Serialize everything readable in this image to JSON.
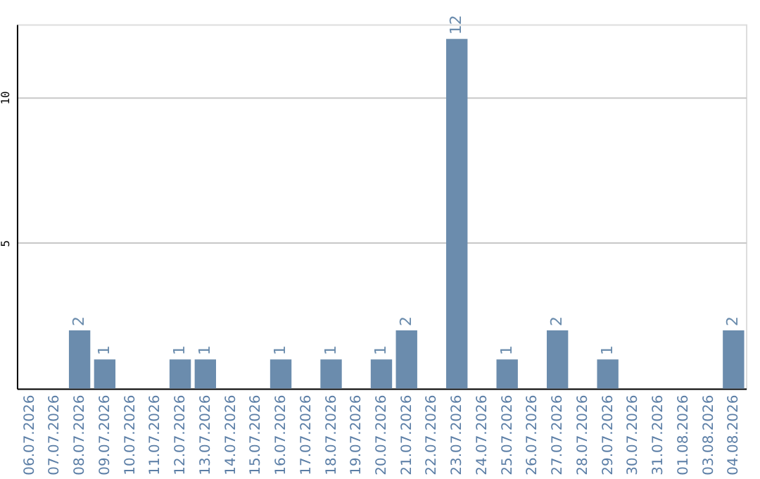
{
  "chart_data": {
    "type": "bar",
    "categories": [
      "06.07.2026",
      "07.07.2026",
      "08.07.2026",
      "09.07.2026",
      "10.07.2026",
      "11.07.2026",
      "12.07.2026",
      "13.07.2026",
      "14.07.2026",
      "15.07.2026",
      "16.07.2026",
      "17.07.2026",
      "18.07.2026",
      "19.07.2026",
      "20.07.2026",
      "21.07.2026",
      "22.07.2026",
      "23.07.2026",
      "24.07.2026",
      "25.07.2026",
      "26.07.2026",
      "27.07.2026",
      "28.07.2026",
      "29.07.2026",
      "30.07.2026",
      "31.07.2026",
      "01.08.2026",
      "03.08.2026",
      "04.08.2026"
    ],
    "values": [
      0,
      0,
      2,
      1,
      0,
      0,
      1,
      1,
      0,
      0,
      1,
      0,
      1,
      0,
      1,
      2,
      0,
      12,
      0,
      1,
      0,
      2,
      0,
      1,
      0,
      0,
      0,
      0,
      2
    ],
    "value_labels": [
      null,
      null,
      "2",
      "1",
      null,
      null,
      "1",
      "1",
      null,
      null,
      "1",
      null,
      "1",
      null,
      "1",
      "2",
      null,
      "12",
      null,
      "1",
      null,
      "2",
      null,
      "1",
      null,
      null,
      null,
      null,
      "2"
    ],
    "color": "#6b8cad",
    "ylim": [
      0,
      12.5
    ],
    "yticks": [
      5,
      10
    ],
    "grid": "y"
  }
}
